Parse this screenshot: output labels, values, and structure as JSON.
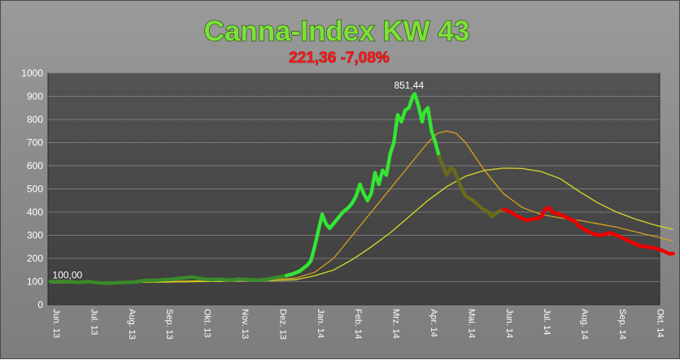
{
  "chart_data": {
    "type": "line",
    "title": "Canna-Index KW 43",
    "subtitle": "221,36 -7,08%",
    "xlabel": "",
    "ylabel": "",
    "ylim": [
      0,
      1000
    ],
    "yticks": [
      0,
      100,
      200,
      300,
      400,
      500,
      600,
      700,
      800,
      900,
      1000
    ],
    "grid": true,
    "legend": "none",
    "categories": [
      "Jun. 13",
      "Jul. 13",
      "Aug. 13",
      "Sep. 13",
      "Okt. 13",
      "Nov. 13",
      "Dez. 13",
      "Jan. 14",
      "Feb. 14",
      "Mrz. 14",
      "Apr. 14",
      "Mai. 14",
      "Jun. 14",
      "Jul. 14",
      "Aug. 14",
      "Sep. 14",
      "Okt. 14"
    ],
    "x_range": [
      0,
      16.5
    ],
    "data_labels": [
      {
        "x": 0.45,
        "y": 100,
        "text": "100,00"
      },
      {
        "x": 9.5,
        "y": 920,
        "text": "851,44"
      }
    ],
    "series": [
      {
        "role": "index",
        "colors": {
          "rising": "#33e633",
          "falling": "#ee0000",
          "mid": "#6b6b1a"
        },
        "points": [
          [
            0,
            100
          ],
          [
            0.25,
            100
          ],
          [
            0.5,
            100
          ],
          [
            0.75,
            96
          ],
          [
            1,
            100
          ],
          [
            1.25,
            95
          ],
          [
            1.5,
            93
          ],
          [
            1.75,
            95
          ],
          [
            2,
            97
          ],
          [
            2.25,
            98
          ],
          [
            2.5,
            105
          ],
          [
            2.75,
            105
          ],
          [
            3,
            108
          ],
          [
            3.25,
            110
          ],
          [
            3.5,
            115
          ],
          [
            3.75,
            120
          ],
          [
            4,
            112
          ],
          [
            4.25,
            108
          ],
          [
            4.5,
            110
          ],
          [
            4.75,
            106
          ],
          [
            5,
            110
          ],
          [
            5.25,
            108
          ],
          [
            5.5,
            106
          ],
          [
            5.75,
            110
          ],
          [
            6,
            118
          ],
          [
            6.25,
            126
          ],
          [
            6.4,
            132
          ],
          [
            6.6,
            145
          ],
          [
            6.8,
            170
          ],
          [
            6.9,
            190
          ],
          [
            7,
            250
          ],
          [
            7.1,
            320
          ],
          [
            7.2,
            390
          ],
          [
            7.3,
            350
          ],
          [
            7.4,
            330
          ],
          [
            7.5,
            350
          ],
          [
            7.6,
            370
          ],
          [
            7.75,
            400
          ],
          [
            7.9,
            420
          ],
          [
            8,
            440
          ],
          [
            8.1,
            470
          ],
          [
            8.2,
            520
          ],
          [
            8.3,
            480
          ],
          [
            8.4,
            450
          ],
          [
            8.5,
            480
          ],
          [
            8.6,
            570
          ],
          [
            8.7,
            520
          ],
          [
            8.8,
            580
          ],
          [
            8.9,
            560
          ],
          [
            9,
            650
          ],
          [
            9.1,
            700
          ],
          [
            9.2,
            820
          ],
          [
            9.3,
            790
          ],
          [
            9.4,
            840
          ],
          [
            9.5,
            851
          ],
          [
            9.6,
            900
          ],
          [
            9.65,
            910
          ],
          [
            9.75,
            860
          ],
          [
            9.85,
            790
          ],
          [
            9.9,
            830
          ],
          [
            10,
            850
          ],
          [
            10.1,
            750
          ],
          [
            10.2,
            700
          ],
          [
            10.3,
            640
          ],
          [
            10.4,
            600
          ],
          [
            10.5,
            560
          ],
          [
            10.6,
            590
          ],
          [
            10.7,
            580
          ],
          [
            10.8,
            540
          ],
          [
            10.9,
            500
          ],
          [
            11,
            470
          ],
          [
            11.2,
            450
          ],
          [
            11.4,
            420
          ],
          [
            11.6,
            400
          ],
          [
            11.7,
            380
          ],
          [
            11.8,
            395
          ],
          [
            12,
            412
          ],
          [
            12.2,
            400
          ],
          [
            12.4,
            380
          ],
          [
            12.6,
            365
          ],
          [
            12.8,
            370
          ],
          [
            13,
            378
          ],
          [
            13.1,
            410
          ],
          [
            13.2,
            420
          ],
          [
            13.3,
            400
          ],
          [
            13.5,
            390
          ],
          [
            13.7,
            375
          ],
          [
            13.9,
            360
          ],
          [
            14,
            340
          ],
          [
            14.2,
            320
          ],
          [
            14.4,
            305
          ],
          [
            14.6,
            300
          ],
          [
            14.8,
            310
          ],
          [
            15,
            300
          ],
          [
            15.2,
            285
          ],
          [
            15.4,
            270
          ],
          [
            15.6,
            255
          ],
          [
            15.8,
            250
          ],
          [
            16,
            245
          ],
          [
            16.2,
            235
          ],
          [
            16.4,
            220
          ],
          [
            16.5,
            221
          ]
        ]
      },
      {
        "role": "moving-average-short",
        "color": "#d6a11e",
        "points": [
          [
            0,
            96
          ],
          [
            1,
            96
          ],
          [
            2,
            97
          ],
          [
            3,
            100
          ],
          [
            4,
            104
          ],
          [
            5,
            106
          ],
          [
            6,
            110
          ],
          [
            6.5,
            115
          ],
          [
            7,
            140
          ],
          [
            7.5,
            200
          ],
          [
            8,
            300
          ],
          [
            8.5,
            400
          ],
          [
            9,
            500
          ],
          [
            9.5,
            600
          ],
          [
            10,
            700
          ],
          [
            10.25,
            740
          ],
          [
            10.5,
            750
          ],
          [
            10.75,
            740
          ],
          [
            11,
            700
          ],
          [
            11.5,
            580
          ],
          [
            12,
            480
          ],
          [
            12.5,
            420
          ],
          [
            13,
            390
          ],
          [
            13.5,
            375
          ],
          [
            14,
            365
          ],
          [
            14.5,
            350
          ],
          [
            15,
            335
          ],
          [
            15.5,
            315
          ],
          [
            16,
            295
          ],
          [
            16.5,
            275
          ]
        ]
      },
      {
        "role": "moving-average-long",
        "color": "#d8d82a",
        "points": [
          [
            0,
            94
          ],
          [
            1,
            95
          ],
          [
            2,
            96
          ],
          [
            3,
            98
          ],
          [
            4,
            100
          ],
          [
            5,
            102
          ],
          [
            6,
            105
          ],
          [
            6.5,
            108
          ],
          [
            7,
            125
          ],
          [
            7.5,
            150
          ],
          [
            8,
            195
          ],
          [
            8.5,
            250
          ],
          [
            9,
            310
          ],
          [
            9.5,
            380
          ],
          [
            10,
            450
          ],
          [
            10.5,
            510
          ],
          [
            11,
            555
          ],
          [
            11.5,
            580
          ],
          [
            12,
            590
          ],
          [
            12.5,
            588
          ],
          [
            13,
            575
          ],
          [
            13.5,
            545
          ],
          [
            14,
            490
          ],
          [
            14.5,
            440
          ],
          [
            15,
            400
          ],
          [
            15.5,
            370
          ],
          [
            16,
            345
          ],
          [
            16.5,
            325
          ]
        ]
      }
    ]
  }
}
